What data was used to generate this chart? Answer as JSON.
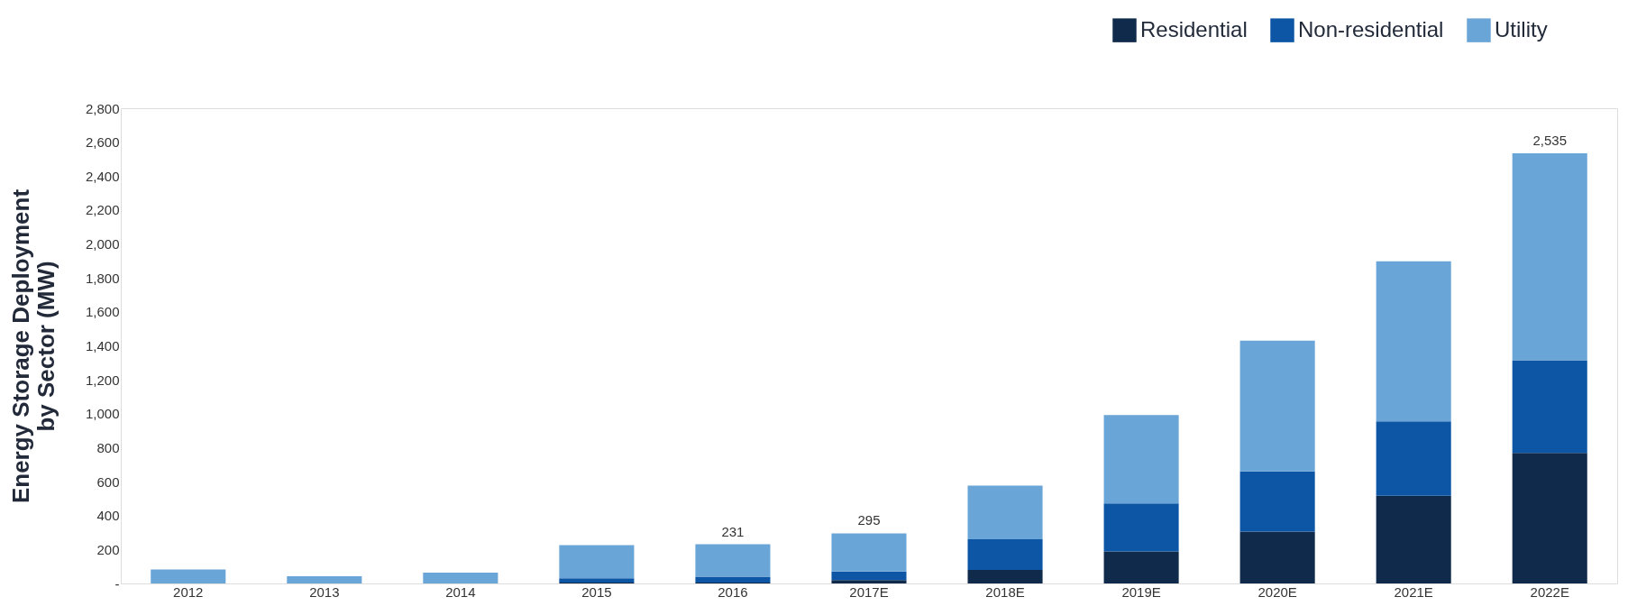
{
  "chart_data": {
    "type": "bar",
    "stacked": true,
    "ylabel": "Energy Storage Deployment\nby Sector (MW)",
    "categories": [
      "2012",
      "2013",
      "2014",
      "2015",
      "2016",
      "2017E",
      "2018E",
      "2019E",
      "2020E",
      "2021E",
      "2022E"
    ],
    "series": [
      {
        "name": "Residential",
        "color": "#0f2a4a",
        "values": [
          0,
          0,
          0,
          5,
          5,
          20,
          80,
          189,
          306,
          517,
          769
        ]
      },
      {
        "name": "Non-residential",
        "color": "#0c56a5",
        "values": [
          0,
          0,
          0,
          25,
          35,
          50,
          180,
          282,
          354,
          438,
          546
        ]
      },
      {
        "name": "Utility",
        "color": "#6aa5d7",
        "values": [
          82,
          43,
          64,
          196,
          191,
          225,
          316,
          521,
          770,
          943,
          1220
        ]
      }
    ],
    "totals": [
      null,
      null,
      null,
      null,
      "231",
      "295",
      null,
      null,
      null,
      null,
      "2,535"
    ],
    "ylim": [
      0,
      2800
    ],
    "yticks": [
      {
        "value": 0,
        "label": "-"
      },
      {
        "value": 200,
        "label": "200"
      },
      {
        "value": 400,
        "label": "400"
      },
      {
        "value": 600,
        "label": "600"
      },
      {
        "value": 800,
        "label": "800"
      },
      {
        "value": 1000,
        "label": "1,000"
      },
      {
        "value": 1200,
        "label": "1,200"
      },
      {
        "value": 1400,
        "label": "1,400"
      },
      {
        "value": 1600,
        "label": "1,600"
      },
      {
        "value": 1800,
        "label": "1,800"
      },
      {
        "value": 2000,
        "label": "2,000"
      },
      {
        "value": 2200,
        "label": "2,200"
      },
      {
        "value": 2400,
        "label": "2,400"
      },
      {
        "value": 2600,
        "label": "2,600"
      },
      {
        "value": 2800,
        "label": "2,800"
      }
    ],
    "grid": false,
    "legend": "top right"
  }
}
